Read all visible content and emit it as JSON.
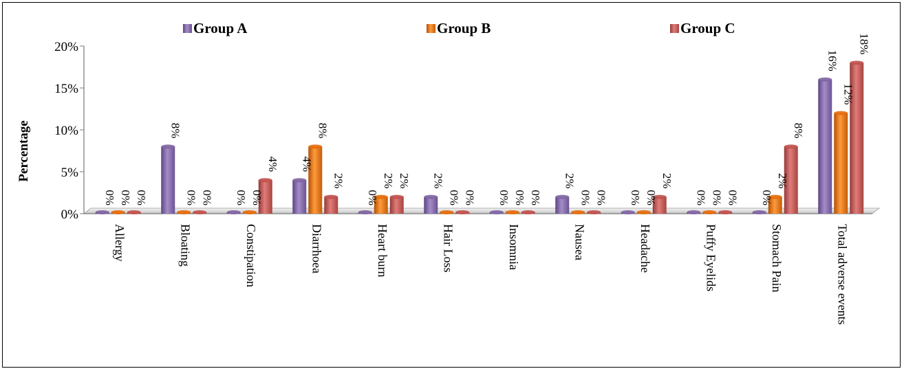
{
  "chart_data": {
    "type": "bar",
    "title": "",
    "xlabel": "",
    "ylabel": "Percentage",
    "ylim": [
      0,
      20
    ],
    "yticks": [
      "0%",
      "5%",
      "10%",
      "15%",
      "20%"
    ],
    "legend_position": "top",
    "grid": false,
    "categories": [
      "Allergy",
      "Bloating",
      "Constipation",
      "Diarrhoea",
      "Heart burn",
      "Hair Loss",
      "Insomnia",
      "Nausea",
      "Headache",
      "Puffy Eyelids",
      "Stomach Pain",
      "Total adverse events"
    ],
    "series": [
      {
        "name": "Group A",
        "color": "#8064a2",
        "values": [
          0,
          8,
          0,
          4,
          0,
          2,
          0,
          2,
          0,
          0,
          0,
          16
        ],
        "labels": [
          "0%",
          "8%",
          "0%",
          "4%",
          "0%",
          "2%",
          "0%",
          "2%",
          "0%",
          "0%",
          "0%",
          "16%"
        ]
      },
      {
        "name": "Group B",
        "color": "#e46c0a",
        "values": [
          0,
          0,
          0,
          8,
          2,
          0,
          0,
          0,
          0,
          0,
          2,
          12
        ],
        "labels": [
          "0%",
          "0%",
          "0%",
          "8%",
          "2%",
          "0%",
          "0%",
          "0%",
          "0%",
          "0%",
          "2%",
          "12%"
        ]
      },
      {
        "name": "Group C",
        "color": "#c0504d",
        "values": [
          0,
          0,
          4,
          2,
          2,
          0,
          0,
          0,
          2,
          0,
          8,
          18
        ],
        "labels": [
          "0%",
          "0%",
          "4%",
          "2%",
          "2%",
          "0%",
          "0%",
          "0%",
          "2%",
          "0%",
          "8%",
          "18%"
        ]
      }
    ]
  }
}
